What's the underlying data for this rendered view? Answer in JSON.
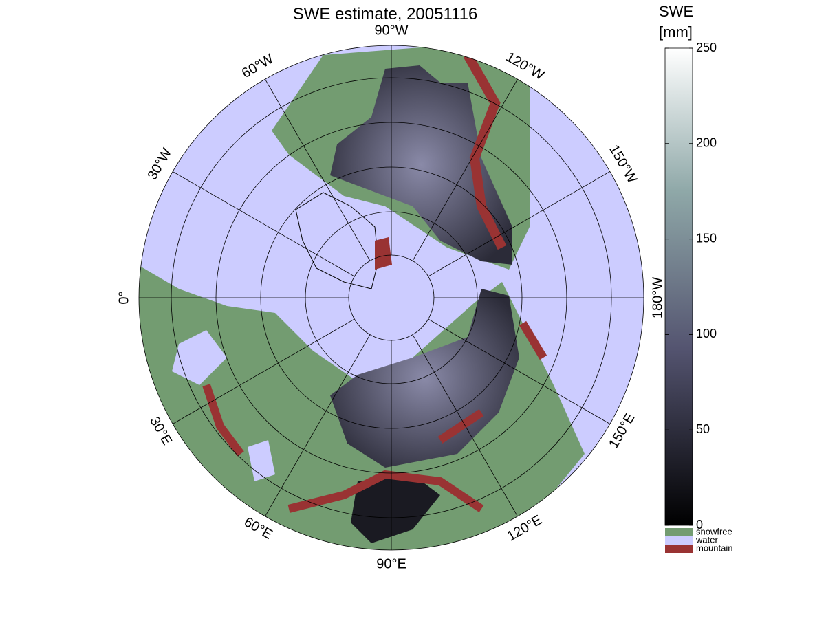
{
  "title": "SWE estimate, 20051116",
  "lon_labels": [
    {
      "value": -90,
      "label": "90°W"
    },
    {
      "value": -60,
      "label": "60°W"
    },
    {
      "value": -30,
      "label": "30°W"
    },
    {
      "value": 0,
      "label": "0°"
    },
    {
      "value": 30,
      "label": "30°E"
    },
    {
      "value": 60,
      "label": "60°E"
    },
    {
      "value": 90,
      "label": "90°E"
    },
    {
      "value": 120,
      "label": "120°E"
    },
    {
      "value": 150,
      "label": "150°E"
    },
    {
      "value": 180,
      "label": "180°W"
    },
    {
      "value": -150,
      "label": "150°W"
    },
    {
      "value": -120,
      "label": "120°W"
    }
  ],
  "colorbar": {
    "label": [
      "SWE",
      "[mm]"
    ],
    "lim": [
      0,
      250
    ],
    "ticks": [
      0,
      50,
      100,
      150,
      200,
      250
    ]
  },
  "legend": [
    {
      "name": "snowfree",
      "color": "#739c71"
    },
    {
      "name": "water",
      "color": "#ccccff"
    },
    {
      "name": "mountain",
      "color": "#993333"
    }
  ]
}
